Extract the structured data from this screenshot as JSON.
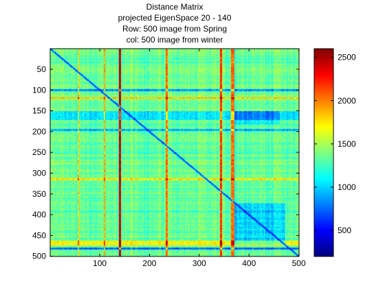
{
  "chart_data": {
    "type": "heatmap",
    "title": [
      "Distance Matrix",
      "projected EigenSpace 20 - 140",
      "Row: 500 image from Spring",
      "col: 500 image from winter"
    ],
    "rows": 500,
    "cols": 500,
    "xlim": [
      1,
      500
    ],
    "ylim": [
      1,
      500
    ],
    "x_ticks": [
      100,
      200,
      300,
      400,
      500
    ],
    "y_ticks": [
      50,
      100,
      150,
      200,
      250,
      300,
      350,
      400,
      450,
      500
    ],
    "y_direction": "reversed",
    "colormap": "jet",
    "colorbar": {
      "range": [
        200,
        2600
      ],
      "ticks": [
        500,
        1000,
        1500,
        2000,
        2500
      ],
      "placement": "right"
    },
    "approx_structure": {
      "typical_value": 1350,
      "diagonal_value": 600,
      "high_columns": [
        {
          "start": 138,
          "end": 141,
          "value": 2450
        },
        {
          "start": 232,
          "end": 236,
          "value": 2050
        },
        {
          "start": 342,
          "end": 345,
          "value": 2200
        },
        {
          "start": 363,
          "end": 370,
          "value": 2050
        },
        {
          "start": 108,
          "end": 110,
          "value": 1900
        },
        {
          "start": 56,
          "end": 58,
          "value": 1800
        }
      ],
      "high_rows": [
        {
          "start": 118,
          "end": 120,
          "value": 1850
        },
        {
          "start": 312,
          "end": 316,
          "value": 1750
        },
        {
          "start": 462,
          "end": 472,
          "value": 1700
        }
      ],
      "low_rows": [
        {
          "start": 98,
          "end": 102,
          "value": 850
        },
        {
          "start": 150,
          "end": 170,
          "value": 1050
        },
        {
          "start": 193,
          "end": 197,
          "value": 900
        },
        {
          "start": 478,
          "end": 482,
          "value": 750
        }
      ],
      "low_blocks": [
        {
          "rows": [
            370,
            470
          ],
          "cols": [
            370,
            470
          ],
          "value": 900
        },
        {
          "rows": [
            150,
            180
          ],
          "cols": [
            370,
            460
          ],
          "value": 1000
        }
      ]
    },
    "colors": {
      "frame": "#000000",
      "background": "#ffffff"
    }
  }
}
